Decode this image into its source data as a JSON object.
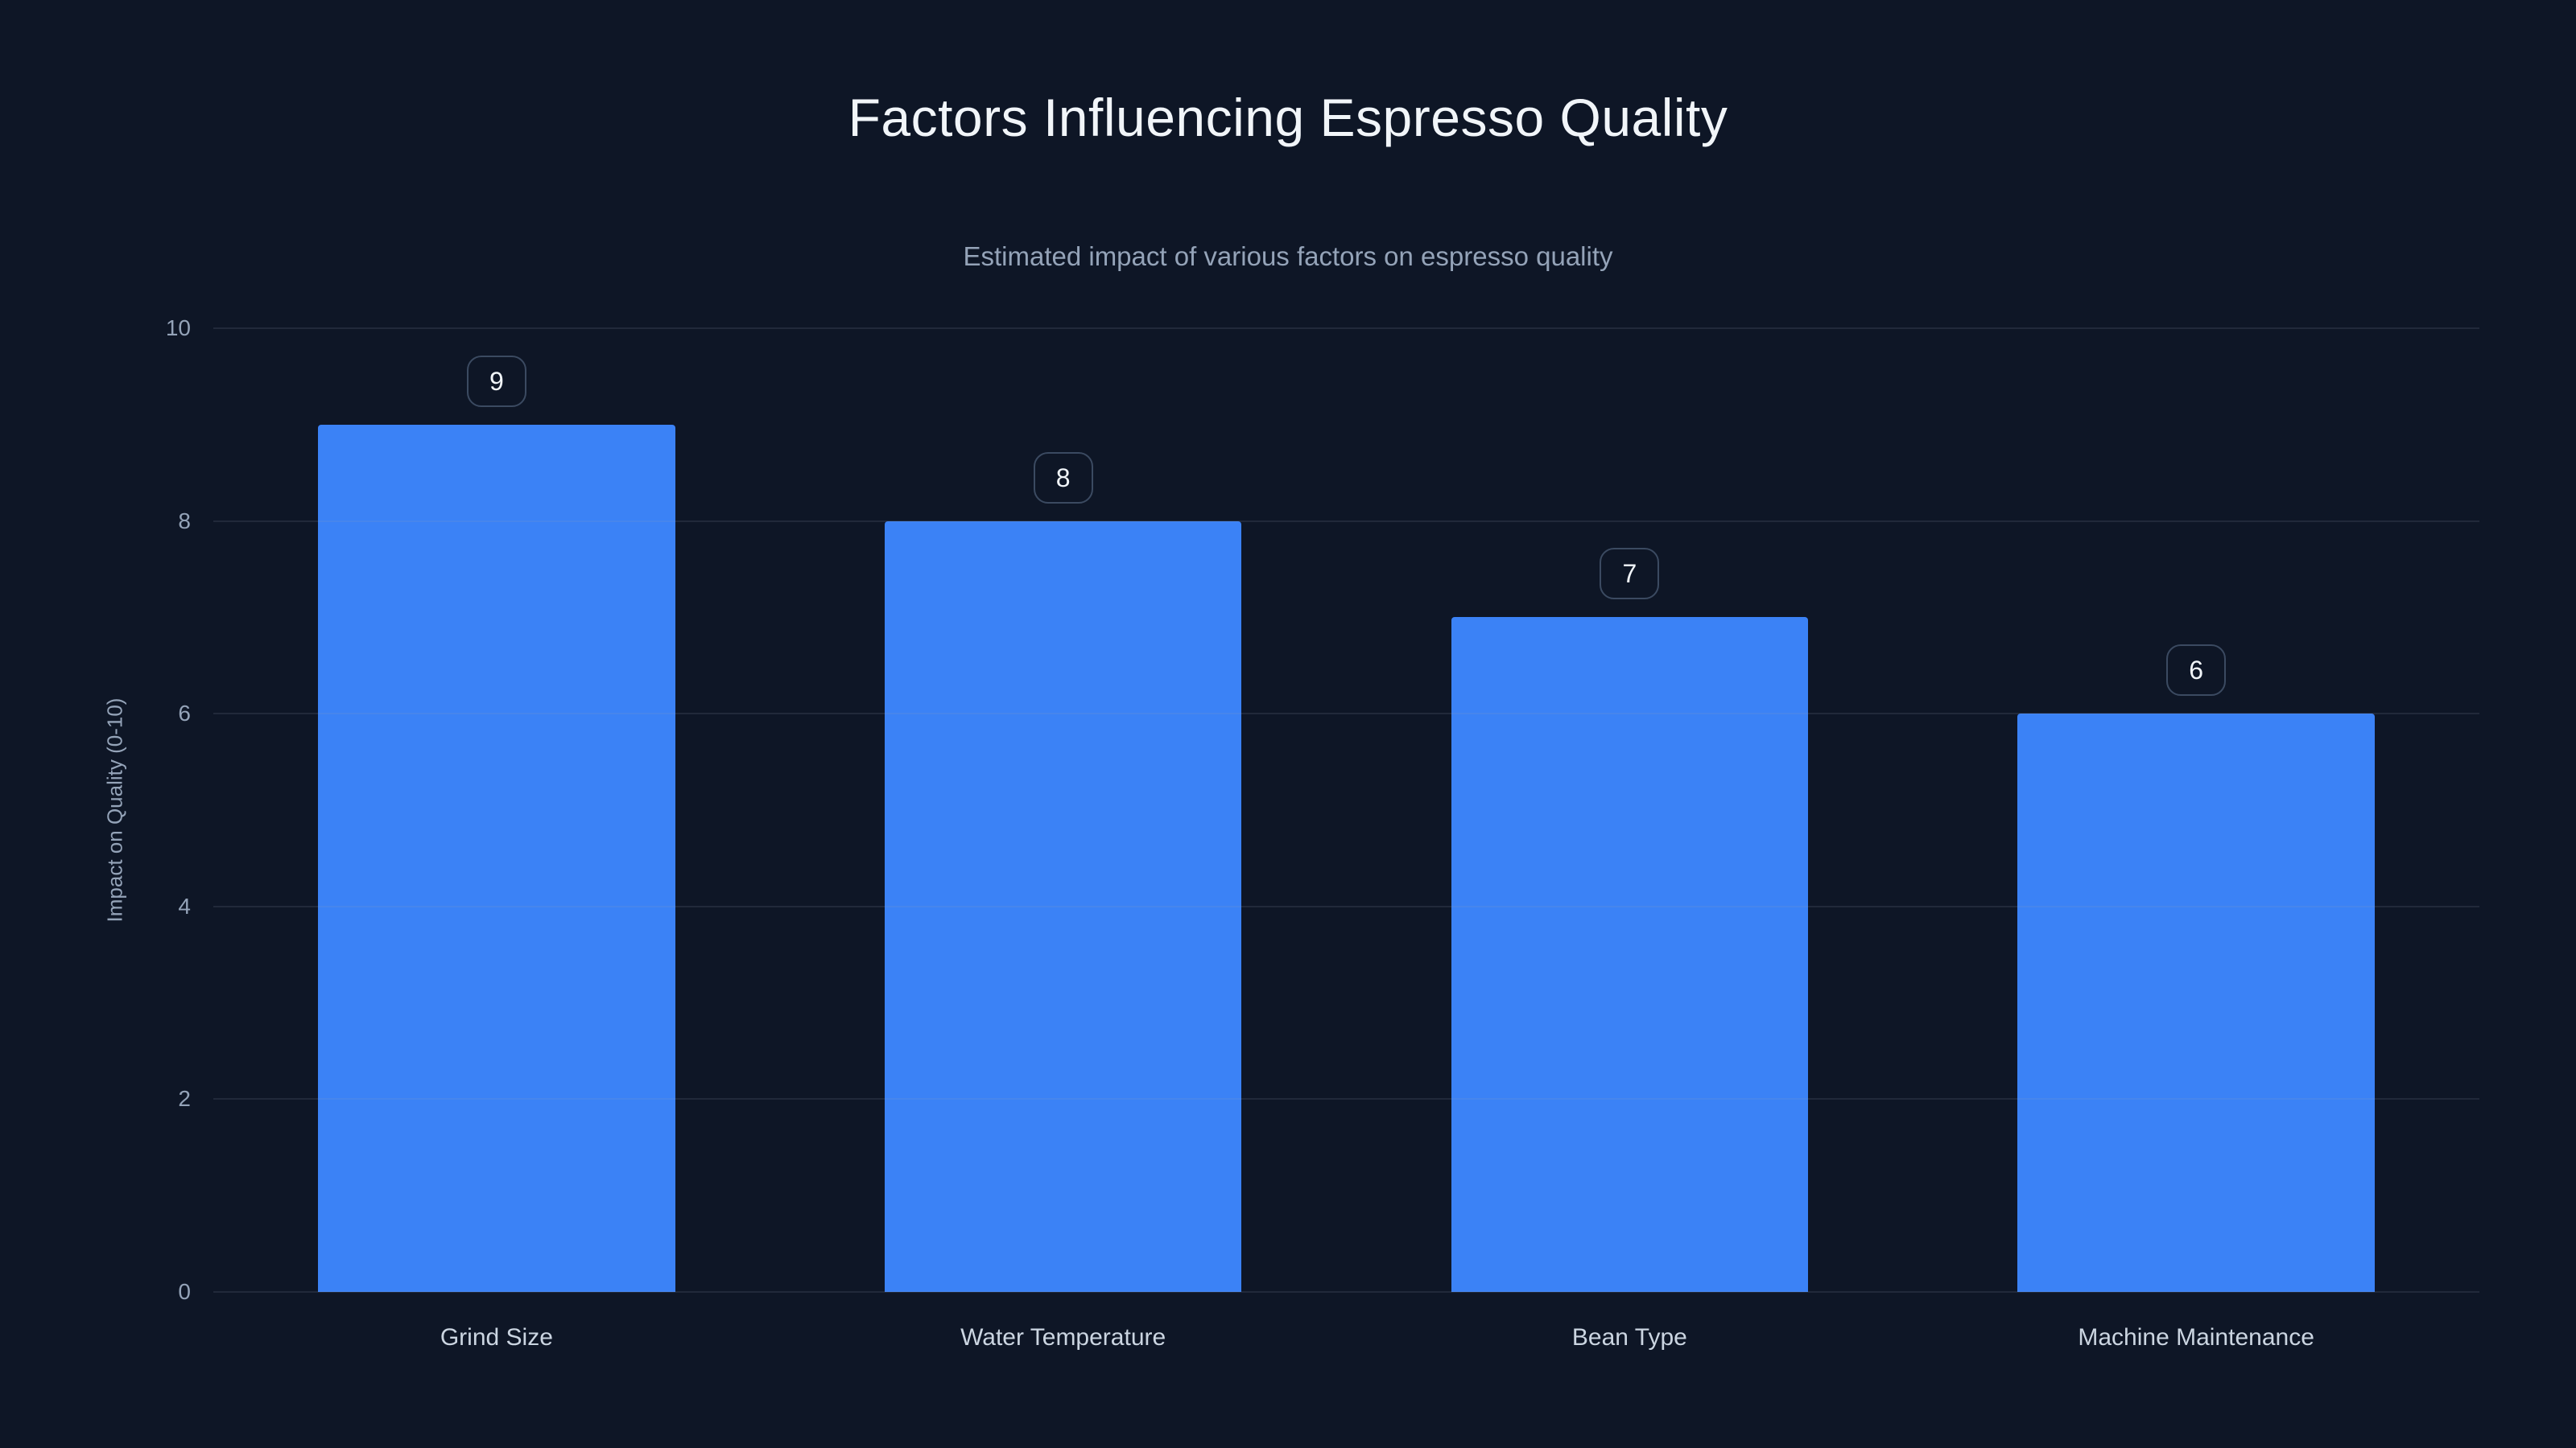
{
  "chart_data": {
    "type": "bar",
    "title": "Factors Influencing Espresso Quality",
    "subtitle": "Estimated impact of various factors on espresso quality",
    "categories": [
      "Grind Size",
      "Water Temperature",
      "Bean Type",
      "Machine Maintenance"
    ],
    "values": [
      9,
      8,
      7,
      6
    ],
    "xlabel": "",
    "ylabel": "Impact on Quality (0-10)",
    "ylim": [
      0,
      10
    ],
    "yticks": [
      0,
      2,
      4,
      6,
      8,
      10
    ],
    "grid": true,
    "legend_position": "none",
    "colors": {
      "background": "#0e1626",
      "bar": "#3b82f6",
      "title_text": "#f1f5f9",
      "subtitle_text": "#94a3b8",
      "tick_text": "#94a3b8",
      "category_text": "#cbd5e1",
      "gridline": "rgba(148,163,184,0.14)",
      "badge_border": "#3b4a61"
    }
  }
}
